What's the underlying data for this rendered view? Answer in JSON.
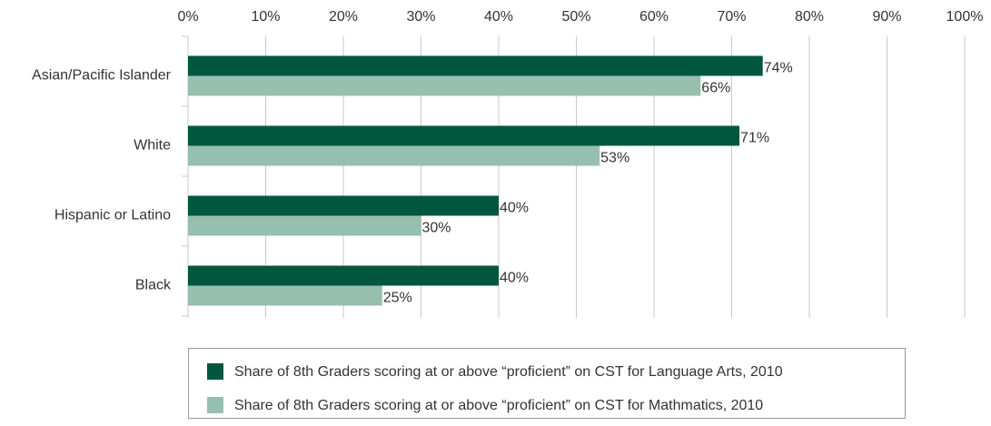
{
  "chart_data": {
    "type": "bar",
    "orientation": "horizontal",
    "categories": [
      "Asian/Pacific Islander",
      "White",
      "Hispanic or Latino",
      "Black"
    ],
    "series": [
      {
        "name": "Share of 8th Graders scoring at or above “proficient” on CST for Language Arts, 2010",
        "color": "#00573d",
        "values": [
          74,
          71,
          40,
          40
        ],
        "value_labels": [
          "74%",
          "71%",
          "40%",
          "40%"
        ]
      },
      {
        "name": "Share of 8th Graders scoring at or above “proficient” on CST for Mathmatics, 2010",
        "color": "#97bfb0",
        "values": [
          66,
          53,
          30,
          25
        ],
        "value_labels": [
          "66%",
          "53%",
          "30%",
          "25%"
        ]
      }
    ],
    "xlim": [
      0,
      100
    ],
    "xticks": [
      {
        "value": 0,
        "label": "0%"
      },
      {
        "value": 10,
        "label": "10%"
      },
      {
        "value": 20,
        "label": "20%"
      },
      {
        "value": 30,
        "label": "30%"
      },
      {
        "value": 40,
        "label": "40%"
      },
      {
        "value": 50,
        "label": "50%"
      },
      {
        "value": 60,
        "label": "60%"
      },
      {
        "value": 70,
        "label": "70%"
      },
      {
        "value": 80,
        "label": "80%"
      },
      {
        "value": 90,
        "label": "90%"
      },
      {
        "value": 100,
        "label": "100%"
      }
    ],
    "grid": true,
    "legend": "bottom"
  }
}
